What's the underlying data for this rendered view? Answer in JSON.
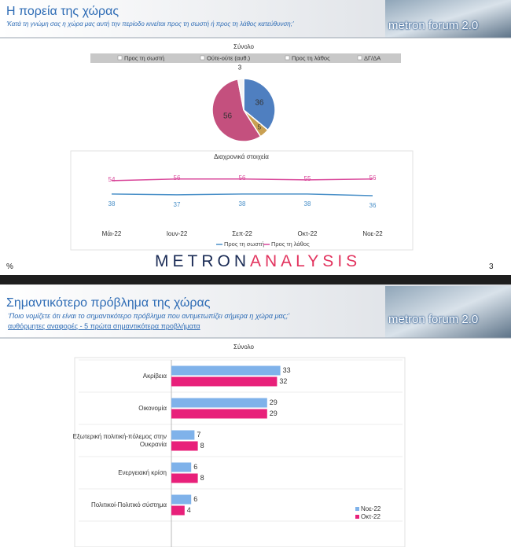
{
  "slides": [
    {
      "title": "Η πορεία της χώρας",
      "subtitle": "'Κατά τη γνώμη σας η χώρα μας αυτή την περίοδο κινείται προς τη σωστή ή προς τη λάθος κατεύθυνση;'",
      "logo": "metron forum 2.0",
      "brand_left": "METRON",
      "brand_right": "ANALYSIS",
      "unit": "%",
      "page_number": "3"
    },
    {
      "title": "Σημαντικότερο πρόβλημα της χώρας",
      "subtitle": "'Ποιο νομίζετε ότι είναι το σημαντικότερο πρόβλημα που αντιμετωπίζει σήμερα η χώρα μας;'",
      "note": "αυθόρμητες αναφορές - 5 πρώτα σημαντικότερα προβλήματα",
      "logo": "metron forum 2.0"
    }
  ],
  "chart_data": [
    {
      "type": "pie",
      "title": "Σύνολο",
      "categories": [
        "Προς τη σωστή",
        "Ούτε-ούτε (αυθ.)",
        "Προς τη λάθος",
        "ΔΓ/ΔΑ"
      ],
      "values": [
        36,
        5,
        56,
        3
      ],
      "colors": [
        "#4f7fc0",
        "#c9a052",
        "#c4507e",
        "#f4f4f4"
      ],
      "legend": "top"
    },
    {
      "type": "line",
      "title": "Διαχρονικά στοιχεία",
      "categories": [
        "Μάι-22",
        "Ιουν-22",
        "Σεπ-22",
        "Οκτ-22",
        "Νοε-22"
      ],
      "series": [
        {
          "name": "Προς τη σωστή",
          "color": "#4a90c8",
          "values": [
            38,
            37,
            38,
            38,
            36
          ]
        },
        {
          "name": "Προς τη λάθος",
          "color": "#d9479a",
          "values": [
            54,
            56,
            56,
            55,
            56
          ]
        }
      ],
      "ylim": [
        0,
        70
      ],
      "legend": "bottom"
    },
    {
      "type": "barh",
      "title": "Σύνολο",
      "categories": [
        "Ακρίβεια",
        "Οικονομία",
        "Εξωτερική πολιτική-πόλεμος στην Ουκρανία",
        "Ενεργειακή κρίση",
        "Πολιτικοί-Πολιτικό σύστημα"
      ],
      "series": [
        {
          "name": "Νοε-22",
          "color": "#7fb2ea",
          "values": [
            33,
            29,
            7,
            6,
            6
          ]
        },
        {
          "name": "Οκτ-22",
          "color": "#e8207a",
          "values": [
            32,
            29,
            8,
            8,
            4
          ]
        }
      ],
      "xlim": [
        0,
        70
      ],
      "legend": "right"
    }
  ]
}
